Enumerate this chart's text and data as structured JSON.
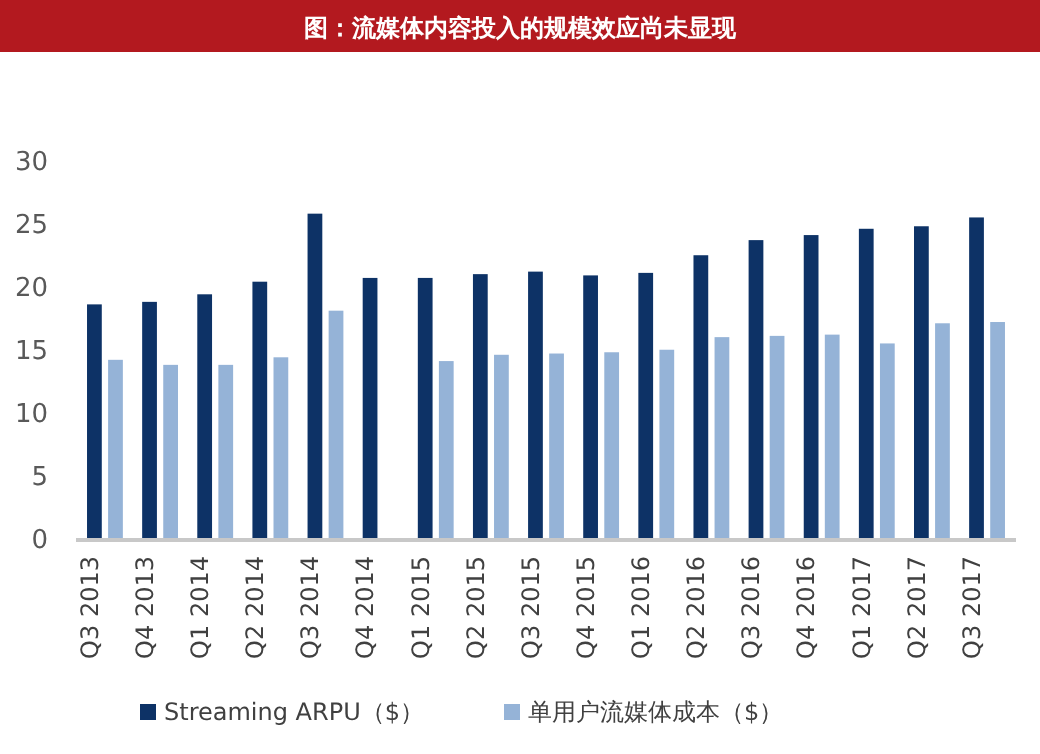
{
  "chart_data": {
    "type": "bar",
    "title": "图：流媒体内容投入的规模效应尚未显现",
    "categories": [
      "Q3 2013",
      "Q4 2013",
      "Q1 2014",
      "Q2 2014",
      "Q3 2014",
      "Q4 2014",
      "Q1 2015",
      "Q2 2015",
      "Q3 2015",
      "Q4 2015",
      "Q1 2016",
      "Q2 2016",
      "Q3 2016",
      "Q4 2016",
      "Q1 2017",
      "Q2 2017",
      "Q3 2017"
    ],
    "series": [
      {
        "name": "Streaming ARPU（$）",
        "color": "#0d3266",
        "values": [
          18.7,
          18.9,
          19.5,
          20.5,
          25.9,
          20.8,
          20.8,
          21.1,
          21.3,
          21.0,
          21.2,
          22.6,
          23.8,
          24.2,
          24.7,
          24.9,
          25.6
        ]
      },
      {
        "name": "单用户流媒体成本（$）",
        "color": "#95b3d7",
        "values": [
          14.3,
          13.9,
          13.9,
          14.5,
          18.2,
          null,
          14.2,
          14.7,
          14.8,
          14.9,
          15.1,
          16.1,
          16.2,
          16.3,
          15.6,
          17.2,
          17.3
        ]
      }
    ],
    "ylim": [
      0,
      30
    ],
    "yticks": [
      0,
      5,
      10,
      15,
      20,
      25,
      30
    ],
    "legend": "bottom"
  }
}
